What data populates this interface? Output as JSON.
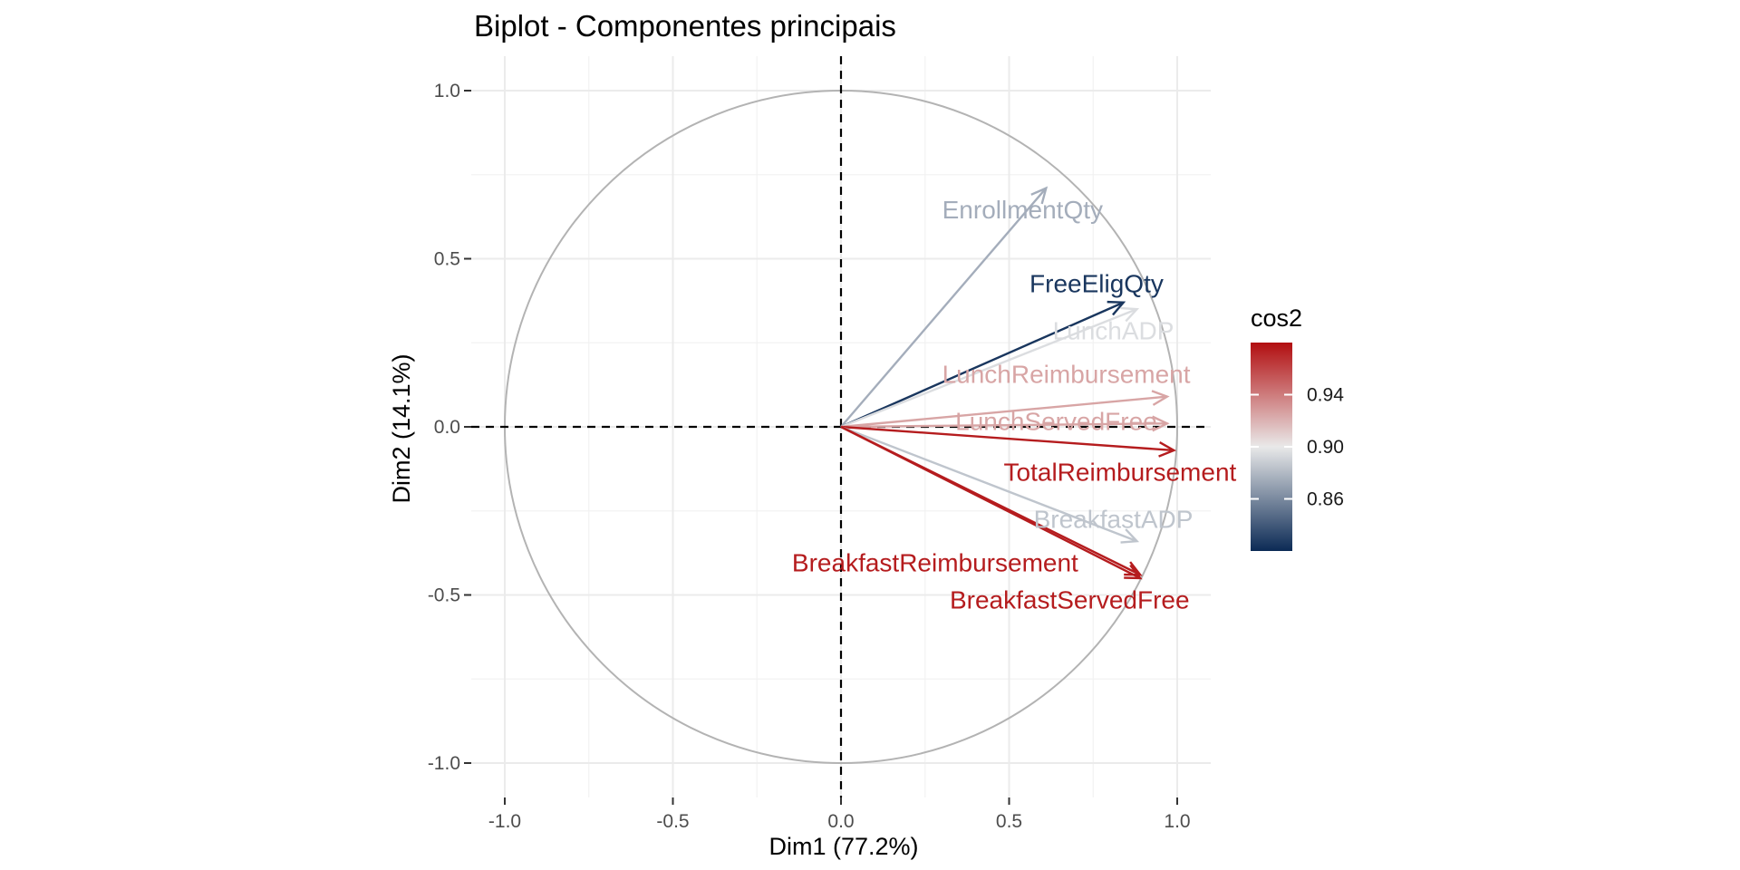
{
  "chart_data": {
    "type": "biplot",
    "title": "Biplot - Componentes principais",
    "xlabel": "Dim1 (77.2%)",
    "ylabel": "Dim2 (14.1%)",
    "xlim": [
      -1.0,
      1.0
    ],
    "ylim": [
      -1.0,
      1.0
    ],
    "x_ticks": [
      -1.0,
      -0.5,
      0.0,
      0.5,
      1.0
    ],
    "y_ticks": [
      -1.0,
      -0.5,
      0.0,
      0.5,
      1.0
    ],
    "x_tick_labels": [
      "-1.0",
      "-0.5",
      "0.0",
      "0.5",
      "1.0"
    ],
    "y_tick_labels": [
      "-1.0",
      "-0.5",
      "0.0",
      "0.5",
      "1.0"
    ],
    "grid": true,
    "unit_circle": true,
    "reference_lines": [
      "x=0",
      "y=0"
    ],
    "legend": {
      "title": "cos2",
      "placement": "right",
      "range": [
        0.82,
        0.98
      ],
      "ticks": [
        0.86,
        0.9,
        0.94
      ],
      "tick_labels": [
        "0.86",
        "0.90",
        "0.94"
      ],
      "colors": [
        "#0b2a55",
        "#e9e9e9",
        "#b20e10"
      ]
    },
    "variables": [
      {
        "name": "EnrollmentQty",
        "x": 0.61,
        "y": 0.71,
        "cos2": 0.875,
        "label_x": 0.54,
        "label_y": 0.64
      },
      {
        "name": "FreeEligQty",
        "x": 0.84,
        "y": 0.37,
        "cos2": 0.825,
        "label_x": 0.76,
        "label_y": 0.42
      },
      {
        "name": "LunchADP",
        "x": 0.88,
        "y": 0.35,
        "cos2": 0.895,
        "label_x": 0.81,
        "label_y": 0.28
      },
      {
        "name": "LunchReimbursement",
        "x": 0.97,
        "y": 0.09,
        "cos2": 0.925,
        "label_x": 0.67,
        "label_y": 0.15
      },
      {
        "name": "LunchServedFree",
        "x": 0.97,
        "y": 0.01,
        "cos2": 0.925,
        "label_x": 0.64,
        "label_y": 0.01
      },
      {
        "name": "TotalReimbursement",
        "x": 0.99,
        "y": -0.07,
        "cos2": 0.975,
        "label_x": 0.83,
        "label_y": -0.14
      },
      {
        "name": "BreakfastADP",
        "x": 0.88,
        "y": -0.34,
        "cos2": 0.885,
        "label_x": 0.81,
        "label_y": -0.28
      },
      {
        "name": "BreakfastReimbursement",
        "x": 0.89,
        "y": -0.44,
        "cos2": 0.975,
        "label_x": 0.28,
        "label_y": -0.41
      },
      {
        "name": "BreakfastServedFree",
        "x": 0.89,
        "y": -0.45,
        "cos2": 0.975,
        "label_x": 0.68,
        "label_y": -0.52
      }
    ]
  }
}
